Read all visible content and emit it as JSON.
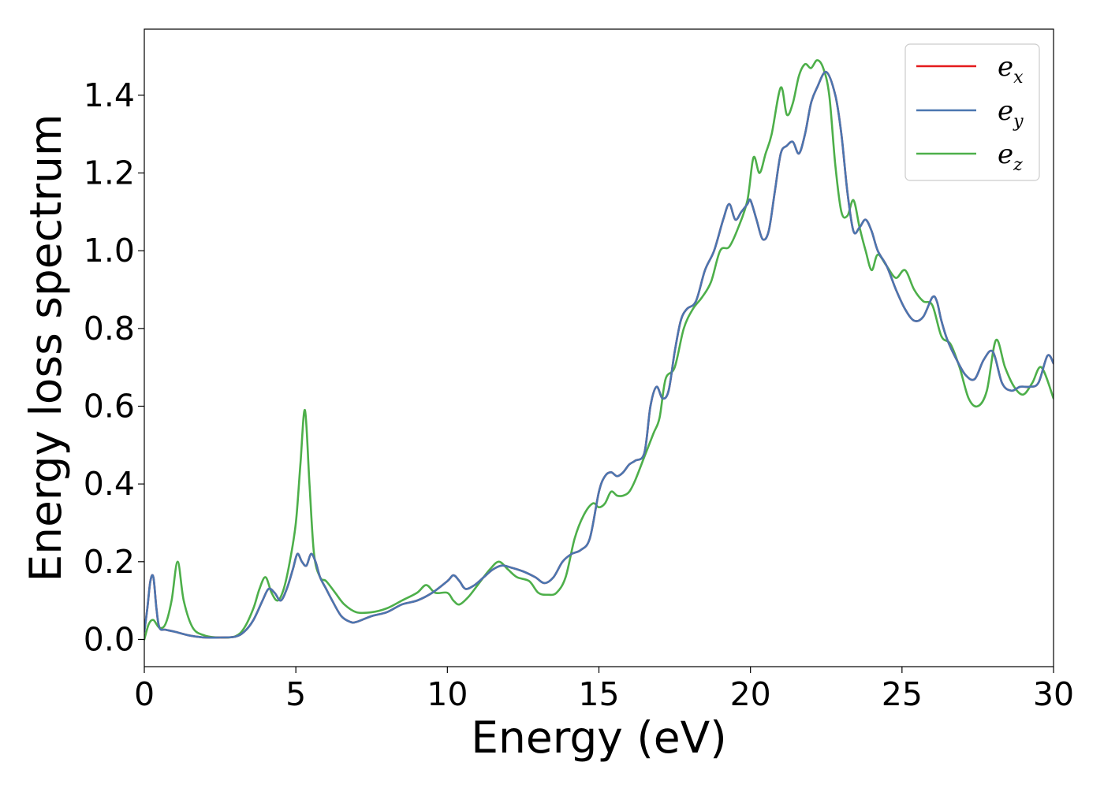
{
  "chart_data": {
    "type": "line",
    "xlabel": "Energy (eV)",
    "ylabel": "Energy loss spectrum",
    "xlim": [
      0,
      30
    ],
    "ylim": [
      -0.07,
      1.57
    ],
    "x_ticks": [
      0,
      5,
      10,
      15,
      20,
      25,
      30
    ],
    "x_tick_labels": [
      "0",
      "5",
      "10",
      "15",
      "20",
      "25",
      "30"
    ],
    "y_ticks": [
      0.0,
      0.2,
      0.4,
      0.6,
      0.8,
      1.0,
      1.2,
      1.4
    ],
    "y_tick_labels": [
      "0.0",
      "0.2",
      "0.4",
      "0.6",
      "0.8",
      "1.0",
      "1.2",
      "1.4"
    ],
    "grid": false,
    "legend_position": "top-right",
    "series": [
      {
        "name": "e_x",
        "label_base": "e",
        "label_sub": "x",
        "color": "#e41a1c",
        "x": [
          0,
          0.1,
          0.2,
          0.3,
          0.4,
          0.5,
          0.7,
          1.0,
          1.5,
          2.0,
          2.5,
          3.0,
          3.3,
          3.6,
          3.9,
          4.1,
          4.3,
          4.5,
          4.7,
          4.9,
          5.05,
          5.2,
          5.35,
          5.5,
          5.65,
          5.8,
          6.0,
          6.2,
          6.5,
          6.8,
          7.0,
          7.5,
          8.0,
          8.5,
          9.0,
          9.5,
          10.0,
          10.2,
          10.4,
          10.6,
          10.9,
          11.2,
          11.5,
          11.8,
          12.1,
          12.5,
          12.9,
          13.2,
          13.5,
          13.8,
          14.1,
          14.4,
          14.7,
          15.0,
          15.2,
          15.4,
          15.6,
          15.8,
          16.0,
          16.2,
          16.5,
          16.7,
          16.9,
          17.1,
          17.3,
          17.5,
          17.7,
          17.9,
          18.2,
          18.5,
          18.8,
          19.1,
          19.3,
          19.5,
          19.7,
          19.9,
          20.0,
          20.2,
          20.4,
          20.6,
          20.8,
          21.0,
          21.2,
          21.4,
          21.6,
          21.8,
          22.0,
          22.2,
          22.5,
          22.8,
          23.0,
          23.2,
          23.4,
          23.6,
          23.8,
          24.0,
          24.2,
          24.5,
          24.8,
          25.1,
          25.4,
          25.7,
          26.0,
          26.15,
          26.3,
          26.5,
          26.8,
          27.1,
          27.4,
          27.7,
          28.0,
          28.3,
          28.6,
          28.9,
          29.2,
          29.5,
          29.8,
          30.0
        ],
        "y": [
          0.02,
          0.08,
          0.15,
          0.16,
          0.08,
          0.03,
          0.025,
          0.02,
          0.01,
          0.005,
          0.005,
          0.007,
          0.02,
          0.05,
          0.1,
          0.13,
          0.12,
          0.1,
          0.13,
          0.18,
          0.22,
          0.2,
          0.19,
          0.22,
          0.2,
          0.16,
          0.13,
          0.1,
          0.06,
          0.045,
          0.045,
          0.06,
          0.07,
          0.09,
          0.1,
          0.12,
          0.15,
          0.165,
          0.15,
          0.13,
          0.14,
          0.16,
          0.18,
          0.19,
          0.185,
          0.175,
          0.16,
          0.145,
          0.16,
          0.2,
          0.22,
          0.23,
          0.26,
          0.38,
          0.42,
          0.43,
          0.42,
          0.43,
          0.45,
          0.46,
          0.48,
          0.6,
          0.65,
          0.62,
          0.64,
          0.74,
          0.82,
          0.85,
          0.87,
          0.95,
          1.0,
          1.08,
          1.12,
          1.08,
          1.1,
          1.12,
          1.13,
          1.08,
          1.03,
          1.05,
          1.15,
          1.25,
          1.27,
          1.28,
          1.25,
          1.3,
          1.38,
          1.42,
          1.46,
          1.4,
          1.3,
          1.15,
          1.05,
          1.06,
          1.08,
          1.05,
          1.0,
          0.96,
          0.9,
          0.85,
          0.82,
          0.83,
          0.88,
          0.87,
          0.82,
          0.77,
          0.72,
          0.68,
          0.67,
          0.72,
          0.74,
          0.66,
          0.64,
          0.65,
          0.65,
          0.66,
          0.73,
          0.71
        ]
      },
      {
        "name": "e_y",
        "label_base": "e",
        "label_sub": "y",
        "color": "#4a76b0",
        "x": [
          0,
          0.1,
          0.2,
          0.3,
          0.4,
          0.5,
          0.7,
          1.0,
          1.5,
          2.0,
          2.5,
          3.0,
          3.3,
          3.6,
          3.9,
          4.1,
          4.3,
          4.5,
          4.7,
          4.9,
          5.05,
          5.2,
          5.35,
          5.5,
          5.65,
          5.8,
          6.0,
          6.2,
          6.5,
          6.8,
          7.0,
          7.5,
          8.0,
          8.5,
          9.0,
          9.5,
          10.0,
          10.2,
          10.4,
          10.6,
          10.9,
          11.2,
          11.5,
          11.8,
          12.1,
          12.5,
          12.9,
          13.2,
          13.5,
          13.8,
          14.1,
          14.4,
          14.7,
          15.0,
          15.2,
          15.4,
          15.6,
          15.8,
          16.0,
          16.2,
          16.5,
          16.7,
          16.9,
          17.1,
          17.3,
          17.5,
          17.7,
          17.9,
          18.2,
          18.5,
          18.8,
          19.1,
          19.3,
          19.5,
          19.7,
          19.9,
          20.0,
          20.2,
          20.4,
          20.6,
          20.8,
          21.0,
          21.2,
          21.4,
          21.6,
          21.8,
          22.0,
          22.2,
          22.5,
          22.8,
          23.0,
          23.2,
          23.4,
          23.6,
          23.8,
          24.0,
          24.2,
          24.5,
          24.8,
          25.1,
          25.4,
          25.7,
          26.0,
          26.15,
          26.3,
          26.5,
          26.8,
          27.1,
          27.4,
          27.7,
          28.0,
          28.3,
          28.6,
          28.9,
          29.2,
          29.5,
          29.8,
          30.0
        ],
        "y": [
          0.02,
          0.08,
          0.15,
          0.16,
          0.08,
          0.03,
          0.025,
          0.02,
          0.01,
          0.005,
          0.005,
          0.007,
          0.02,
          0.05,
          0.1,
          0.13,
          0.12,
          0.1,
          0.13,
          0.18,
          0.22,
          0.2,
          0.19,
          0.22,
          0.2,
          0.16,
          0.13,
          0.1,
          0.06,
          0.045,
          0.045,
          0.06,
          0.07,
          0.09,
          0.1,
          0.12,
          0.15,
          0.165,
          0.15,
          0.13,
          0.14,
          0.16,
          0.18,
          0.19,
          0.185,
          0.175,
          0.16,
          0.145,
          0.16,
          0.2,
          0.22,
          0.23,
          0.26,
          0.38,
          0.42,
          0.43,
          0.42,
          0.43,
          0.45,
          0.46,
          0.48,
          0.6,
          0.65,
          0.62,
          0.64,
          0.74,
          0.82,
          0.85,
          0.87,
          0.95,
          1.0,
          1.08,
          1.12,
          1.08,
          1.1,
          1.12,
          1.13,
          1.08,
          1.03,
          1.05,
          1.15,
          1.25,
          1.27,
          1.28,
          1.25,
          1.3,
          1.38,
          1.42,
          1.46,
          1.4,
          1.3,
          1.15,
          1.05,
          1.06,
          1.08,
          1.05,
          1.0,
          0.96,
          0.9,
          0.85,
          0.82,
          0.83,
          0.88,
          0.87,
          0.82,
          0.77,
          0.72,
          0.68,
          0.67,
          0.72,
          0.74,
          0.66,
          0.64,
          0.65,
          0.65,
          0.66,
          0.73,
          0.71
        ]
      },
      {
        "name": "e_z",
        "label_base": "e",
        "label_sub": "z",
        "color": "#4daf4a",
        "x": [
          0,
          0.15,
          0.3,
          0.5,
          0.7,
          0.9,
          1.1,
          1.3,
          1.6,
          2.0,
          2.5,
          3.0,
          3.3,
          3.6,
          3.8,
          4.0,
          4.2,
          4.4,
          4.6,
          4.8,
          5.0,
          5.15,
          5.3,
          5.45,
          5.6,
          5.8,
          6.0,
          6.3,
          6.6,
          7.0,
          7.5,
          8.0,
          8.5,
          9.0,
          9.3,
          9.6,
          10.0,
          10.2,
          10.4,
          10.7,
          11.0,
          11.4,
          11.7,
          12.0,
          12.3,
          12.7,
          13.0,
          13.3,
          13.6,
          13.9,
          14.2,
          14.5,
          14.8,
          15.0,
          15.2,
          15.4,
          15.6,
          15.8,
          16.0,
          16.2,
          16.5,
          16.8,
          17.0,
          17.2,
          17.5,
          17.8,
          18.1,
          18.4,
          18.7,
          19.0,
          19.3,
          19.6,
          19.9,
          20.1,
          20.3,
          20.5,
          20.7,
          21.0,
          21.2,
          21.4,
          21.6,
          21.8,
          22.0,
          22.2,
          22.4,
          22.6,
          22.8,
          23.0,
          23.2,
          23.4,
          23.6,
          23.8,
          24.0,
          24.2,
          24.5,
          24.8,
          25.1,
          25.4,
          25.7,
          26.0,
          26.3,
          26.6,
          26.9,
          27.2,
          27.5,
          27.8,
          28.1,
          28.4,
          28.7,
          29.0,
          29.3,
          29.6,
          30.0
        ],
        "y": [
          0.0,
          0.04,
          0.05,
          0.03,
          0.04,
          0.1,
          0.2,
          0.1,
          0.03,
          0.01,
          0.005,
          0.008,
          0.03,
          0.08,
          0.13,
          0.16,
          0.12,
          0.1,
          0.13,
          0.2,
          0.3,
          0.45,
          0.59,
          0.4,
          0.22,
          0.16,
          0.15,
          0.12,
          0.09,
          0.07,
          0.07,
          0.08,
          0.1,
          0.12,
          0.14,
          0.12,
          0.12,
          0.1,
          0.09,
          0.11,
          0.14,
          0.18,
          0.2,
          0.18,
          0.16,
          0.15,
          0.12,
          0.115,
          0.12,
          0.16,
          0.26,
          0.32,
          0.35,
          0.34,
          0.35,
          0.38,
          0.37,
          0.37,
          0.38,
          0.41,
          0.47,
          0.53,
          0.57,
          0.67,
          0.7,
          0.8,
          0.85,
          0.88,
          0.92,
          1.0,
          1.01,
          1.06,
          1.13,
          1.24,
          1.2,
          1.25,
          1.3,
          1.42,
          1.35,
          1.38,
          1.45,
          1.48,
          1.47,
          1.49,
          1.47,
          1.4,
          1.22,
          1.1,
          1.09,
          1.13,
          1.06,
          1.0,
          0.95,
          0.99,
          0.96,
          0.93,
          0.95,
          0.9,
          0.87,
          0.86,
          0.78,
          0.76,
          0.7,
          0.62,
          0.6,
          0.64,
          0.77,
          0.7,
          0.65,
          0.63,
          0.66,
          0.7,
          0.62
        ]
      }
    ]
  }
}
